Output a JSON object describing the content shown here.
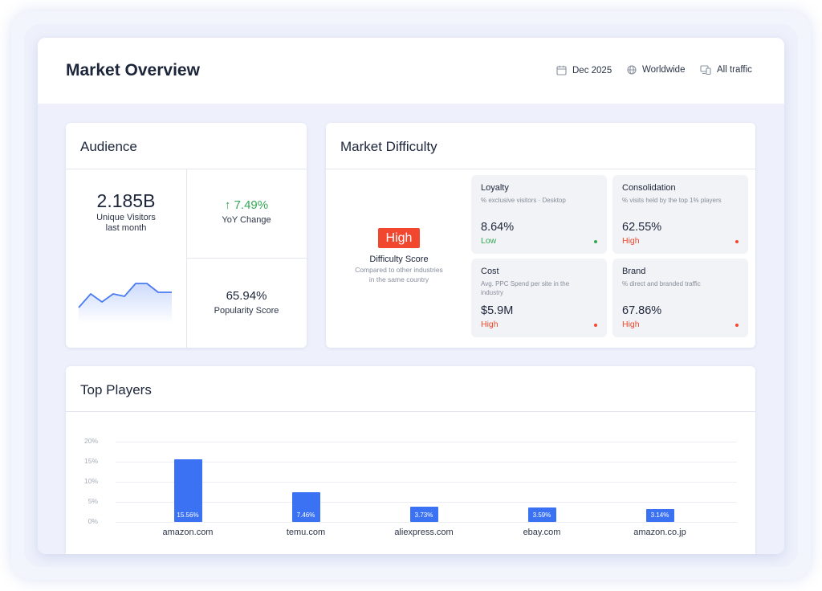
{
  "header": {
    "title": "Market Overview",
    "date": "Dec 2025",
    "region": "Worldwide",
    "traffic": "All traffic"
  },
  "audience": {
    "title": "Audience",
    "visitors_value": "2.185B",
    "visitors_label_1": "Unique Visitors",
    "visitors_label_2": "last month",
    "yoy_value": "7.49%",
    "yoy_label": "YoY Change",
    "popularity_value": "65.94%",
    "popularity_label": "Popularity Score",
    "sparkline_color": "#4a7bf0"
  },
  "difficulty": {
    "title": "Market Difficulty",
    "badge": "High",
    "score_label": "Difficulty Score",
    "score_sub_1": "Compared to other industries",
    "score_sub_2": "in the same country",
    "badge_color": "#f2472f",
    "metrics": [
      {
        "title": "Loyalty",
        "sub": "% exclusive visitors · Desktop",
        "value": "8.64%",
        "level": "Low",
        "level_color": "#34a853"
      },
      {
        "title": "Consolidation",
        "sub": "% visits held by the top 1% players",
        "value": "62.55%",
        "level": "High",
        "level_color": "#f2472f"
      },
      {
        "title": "Cost",
        "sub": "Avg. PPC Spend per site in the industry",
        "value": "$5.9M",
        "level": "High",
        "level_color": "#f2472f"
      },
      {
        "title": "Brand",
        "sub": "% direct and branded traffic",
        "value": "67.86%",
        "level": "High",
        "level_color": "#f2472f"
      }
    ]
  },
  "top_players": {
    "title": "Top Players"
  },
  "chart_data": {
    "type": "bar",
    "categories": [
      "amazon.com",
      "temu.com",
      "aliexpress.com",
      "ebay.com",
      "amazon.co.jp"
    ],
    "values": [
      15.56,
      7.46,
      3.73,
      3.59,
      3.14
    ],
    "value_labels": [
      "15.56%",
      "7.46%",
      "3.73%",
      "3.59%",
      "3.14%"
    ],
    "y_ticks": [
      "20%",
      "15%",
      "10%",
      "5%",
      "0%"
    ],
    "ylim": [
      0,
      20
    ],
    "grid": true,
    "bar_color": "#3a72f3"
  }
}
